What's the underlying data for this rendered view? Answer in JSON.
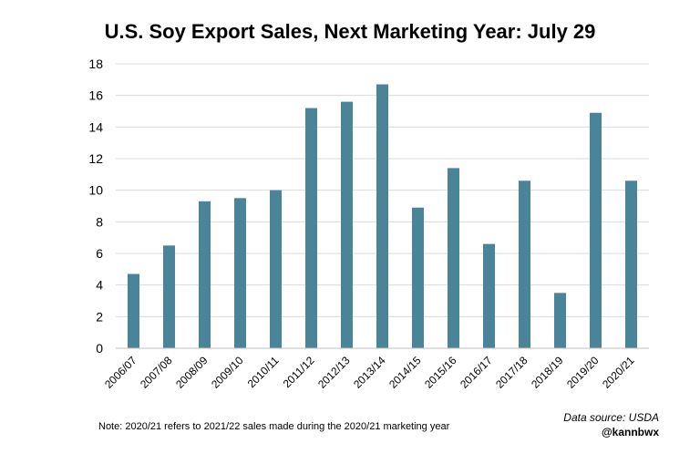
{
  "chart_data": {
    "type": "bar",
    "title": "U.S. Soy Export Sales, Next Marketing Year: July 29",
    "xlabel": "",
    "ylabel": "",
    "categories": [
      "2006/07",
      "2007/08",
      "2008/09",
      "2009/10",
      "2010/11",
      "2011/12",
      "2012/13",
      "2013/14",
      "2014/15",
      "2015/16",
      "2016/17",
      "2017/18",
      "2018/19",
      "2019/20",
      "2020/21"
    ],
    "values": [
      4.7,
      6.5,
      9.3,
      9.5,
      10.0,
      15.2,
      15.6,
      16.7,
      8.9,
      11.4,
      6.6,
      10.6,
      3.5,
      14.9,
      10.6
    ],
    "ylim": [
      0,
      18
    ],
    "yticks": [
      0,
      2,
      4,
      6,
      8,
      10,
      12,
      14,
      16,
      18
    ],
    "grid": true,
    "bar_color": "#4a8498"
  },
  "note": "Note: 2020/21 refers to 2021/22 sales made during the 2020/21 marketing year",
  "source": "Data source: USDA",
  "handle": "@kannbwx"
}
